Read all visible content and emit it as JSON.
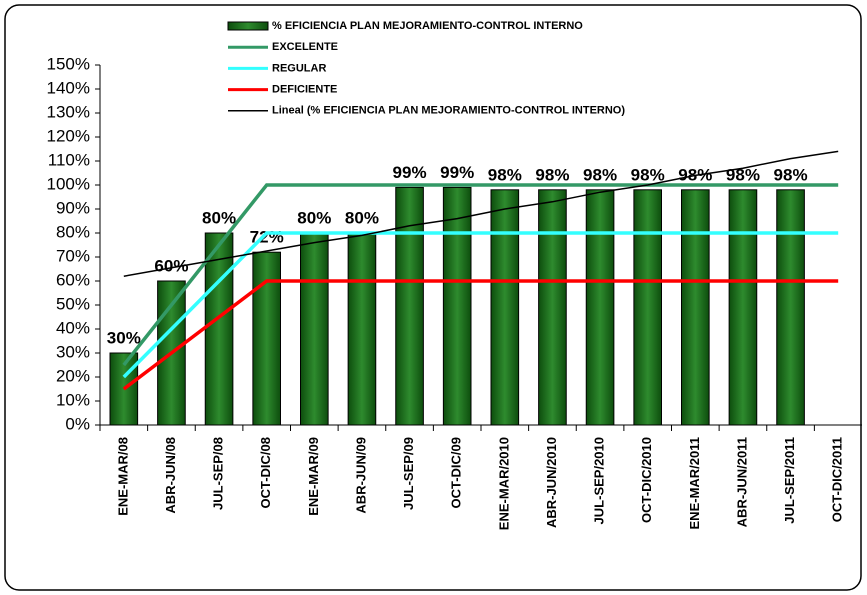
{
  "chart_data": {
    "type": "bar",
    "categories": [
      "ENE-MAR/08",
      "ABR-JUN/08",
      "JUL-SEP/08",
      "OCT-DIC/08",
      "ENE-MAR/09",
      "ABR-JUN/09",
      "JUL-SEP/09",
      "OCT-DIC/09",
      "ENE-MAR/2010",
      "ABR-JUN/2010",
      "JUL-SEP/2010",
      "OCT-DIC/2010",
      "ENE-MAR/2011",
      "ABR-JUN/2011",
      "JUL-SEP/2011",
      "OCT-DIC/2011"
    ],
    "series": [
      {
        "name": "% EFICIENCIA PLAN MEJORAMIENTO-CONTROL INTERNO",
        "type": "bar",
        "color": "#1f7a1f",
        "values": [
          30,
          60,
          80,
          72,
          80,
          80,
          99,
          99,
          98,
          98,
          98,
          98,
          98,
          98,
          98,
          null
        ],
        "value_labels": [
          "30%",
          "60%",
          "80%",
          "72%",
          "80%",
          "80%",
          "99%",
          "99%",
          "98%",
          "98%",
          "98%",
          "98%",
          "98%",
          "98%",
          "98%",
          null
        ]
      },
      {
        "name": "EXCELENTE",
        "type": "line",
        "color": "#339966",
        "values": [
          25,
          50,
          75,
          100,
          100,
          100,
          100,
          100,
          100,
          100,
          100,
          100,
          100,
          100,
          100,
          100
        ]
      },
      {
        "name": "REGULAR",
        "type": "line",
        "color": "#33ffff",
        "values": [
          20,
          40,
          60,
          80,
          80,
          80,
          80,
          80,
          80,
          80,
          80,
          80,
          80,
          80,
          80,
          80
        ]
      },
      {
        "name": "DEFICIENTE",
        "type": "line",
        "color": "#ff0000",
        "values": [
          15,
          30,
          45,
          60,
          60,
          60,
          60,
          60,
          60,
          60,
          60,
          60,
          60,
          60,
          60,
          60
        ]
      },
      {
        "name": "Lineal (% EFICIENCIA PLAN MEJORAMIENTO-CONTROL INTERNO)",
        "type": "line",
        "color": "#000000",
        "values": [
          62,
          65.5,
          69,
          72.5,
          76,
          79,
          83,
          86,
          90,
          93,
          97,
          100,
          104,
          107,
          111,
          114
        ]
      }
    ],
    "ylim": [
      0,
      150
    ],
    "yticks": [
      {
        "value": 0,
        "label": "0%"
      },
      {
        "value": 10,
        "label": "10%"
      },
      {
        "value": 20,
        "label": "20%"
      },
      {
        "value": 30,
        "label": "30%"
      },
      {
        "value": 40,
        "label": "40%"
      },
      {
        "value": 50,
        "label": "50%"
      },
      {
        "value": 60,
        "label": "60%"
      },
      {
        "value": 70,
        "label": "70%"
      },
      {
        "value": 80,
        "label": "80%"
      },
      {
        "value": 90,
        "label": "90%"
      },
      {
        "value": 100,
        "label": "100%"
      },
      {
        "value": 110,
        "label": "110%"
      },
      {
        "value": 120,
        "label": "120%"
      },
      {
        "value": 130,
        "label": "130%"
      },
      {
        "value": 140,
        "label": "140%"
      },
      {
        "value": 150,
        "label": "150%"
      }
    ]
  }
}
